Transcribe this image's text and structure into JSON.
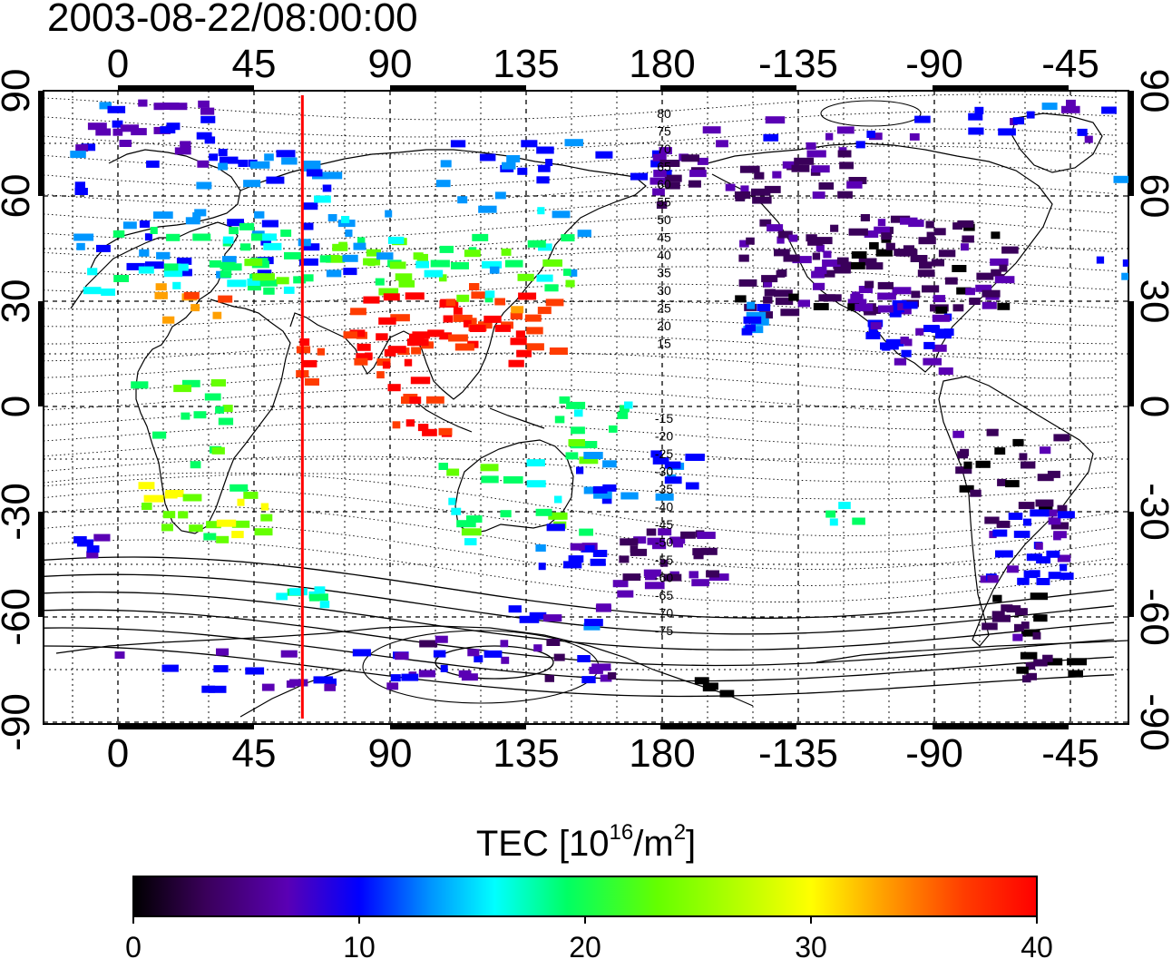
{
  "title": "2003-08-22/08:00:00",
  "map": {
    "lon_ticks": [
      "0",
      "45",
      "90",
      "135",
      "180",
      "-135",
      "-90",
      "-45"
    ],
    "lat_ticks": [
      "90",
      "60",
      "30",
      "0",
      "-30",
      "-60",
      "-90"
    ],
    "contour_labels": [
      "80",
      "75",
      "70",
      "65",
      "60",
      "55",
      "50",
      "45",
      "40",
      "35",
      "30",
      "25",
      "20",
      "15",
      "-15",
      "-20",
      "-25",
      "-30",
      "-35",
      "-40",
      "-45",
      "-50",
      "-55",
      "-60",
      "-65",
      "-70",
      "-75"
    ],
    "meridian_marker_lon": 61,
    "marker_color": "#ff0000"
  },
  "colorbar": {
    "label_main": "TEC  [10",
    "label_sup1": "16",
    "label_mid": "/m",
    "label_sup2": "2",
    "label_end": "]",
    "ticks": [
      "0",
      "10",
      "20",
      "30",
      "40"
    ],
    "range": [
      0,
      40
    ],
    "colormap": [
      "#000000",
      "#3a005a",
      "#5a00b4",
      "#0000ff",
      "#0096ff",
      "#00ffff",
      "#00ff64",
      "#64ff00",
      "#ffff00",
      "#ffa000",
      "#ff3c00",
      "#ff0000"
    ]
  }
}
